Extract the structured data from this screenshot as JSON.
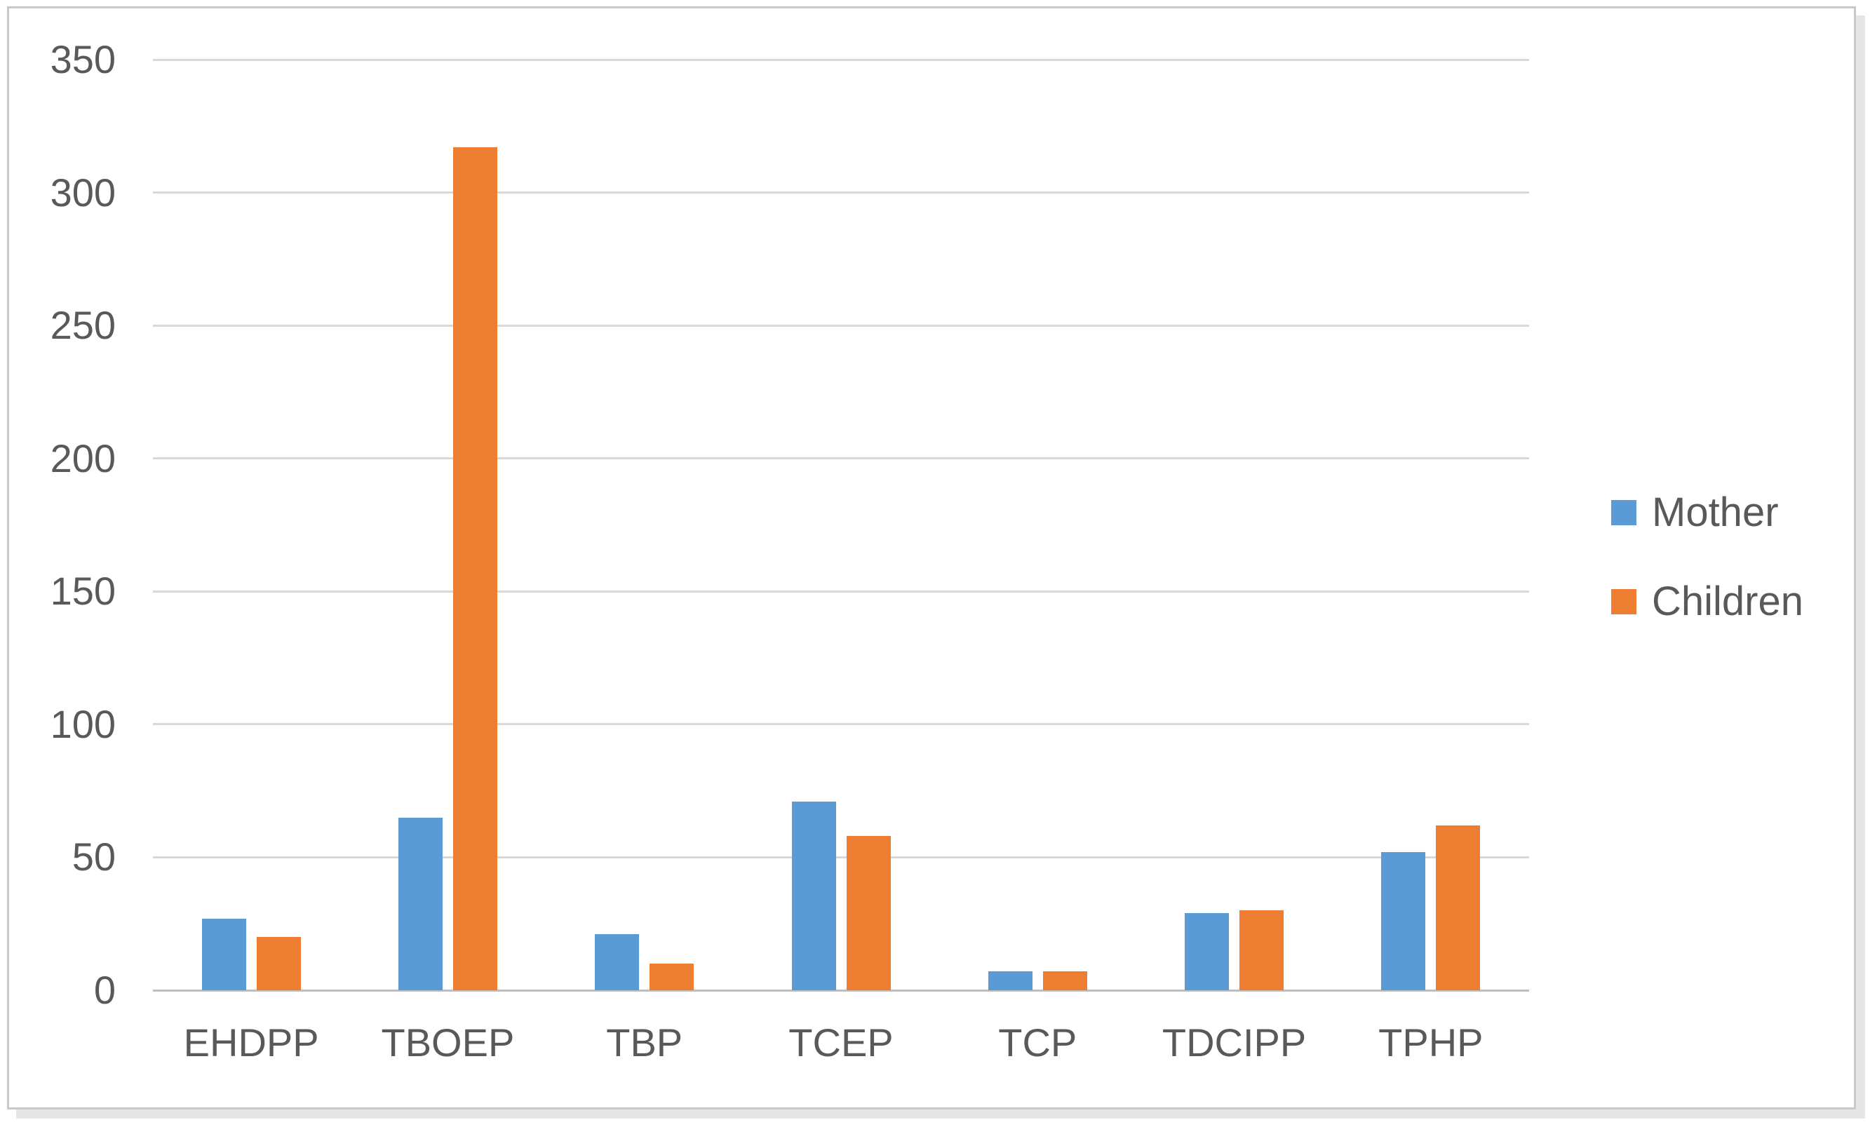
{
  "chart_data": {
    "type": "bar",
    "categories": [
      "EHDPP",
      "TBOEP",
      "TBP",
      "TCEP",
      "TCP",
      "TDCIPP",
      "TPHP"
    ],
    "series": [
      {
        "name": "Mother",
        "color": "#5B9BD5",
        "values": [
          27,
          65,
          21,
          71,
          7,
          29,
          52
        ]
      },
      {
        "name": "Children",
        "color": "#ED7D31",
        "values": [
          20,
          317,
          10,
          58,
          7,
          30,
          62
        ]
      }
    ],
    "title": "",
    "xlabel": "",
    "ylabel": "",
    "ylim": [
      0,
      350
    ],
    "yticks": [
      0,
      50,
      100,
      150,
      200,
      250,
      300,
      350
    ],
    "grid": true,
    "legend_position": "right"
  },
  "colors": {
    "mother": "#5B9BD5",
    "children": "#ED7D31",
    "gridline": "#d9d9d9",
    "axis_line": "#bfbfbf",
    "text": "#595959",
    "frame_border": "#c9c9c9",
    "background": "#ffffff"
  }
}
